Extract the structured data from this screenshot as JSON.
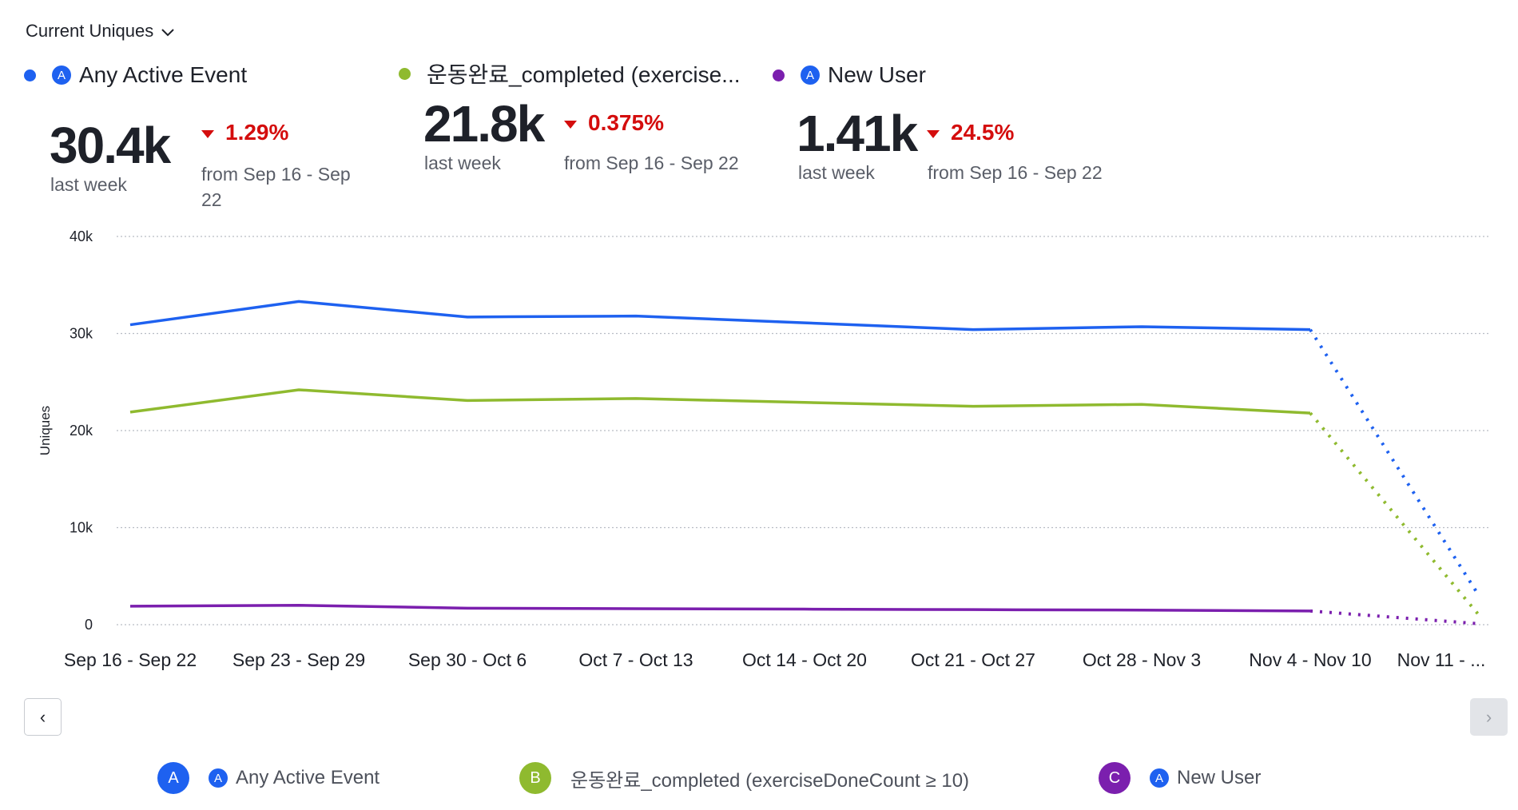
{
  "header": {
    "metric_label": "Current Uniques"
  },
  "summary": [
    {
      "name": "Any Active Event",
      "value": "30.4k",
      "period": "last week",
      "delta": "1.29%",
      "compare": "from Sep 16 - Sep 22",
      "color": "#1e61f0"
    },
    {
      "name": "운동완료_completed (exercise...",
      "value": "21.8k",
      "period": "last week",
      "delta": "0.375%",
      "compare": "from Sep 16 - Sep 22",
      "color": "#8fba2f"
    },
    {
      "name": "New User",
      "value": "1.41k",
      "period": "last week",
      "delta": "24.5%",
      "compare": "from Sep 16 - Sep 22",
      "color": "#7b1fae"
    }
  ],
  "nav": {
    "prev": "‹",
    "next": "›"
  },
  "legend": [
    {
      "letter": "A",
      "label": "Any Active Event",
      "color": "#1e61f0"
    },
    {
      "letter": "B",
      "label": "운동완료_completed (exerciseDoneCount ≥ 10)",
      "color": "#8fba2f"
    },
    {
      "letter": "C",
      "label": "New User",
      "color": "#7b1fae"
    }
  ],
  "chart_data": {
    "type": "line",
    "ylabel": "Uniques",
    "ylim": [
      0,
      40000
    ],
    "yticks": [
      {
        "v": 0,
        "label": "0"
      },
      {
        "v": 10000,
        "label": "10k"
      },
      {
        "v": 20000,
        "label": "20k"
      },
      {
        "v": 30000,
        "label": "30k"
      },
      {
        "v": 40000,
        "label": "40k"
      }
    ],
    "categories": [
      "Sep 16 - Sep 22",
      "Sep 23 - Sep 29",
      "Sep 30 - Oct 6",
      "Oct 7 - Oct 13",
      "Oct 14 - Oct 20",
      "Oct 21 - Oct 27",
      "Oct 28 - Nov 3",
      "Nov 4 - Nov 10",
      "Nov 11 - ..."
    ],
    "incomplete_from_index": 7,
    "series": [
      {
        "name": "Any Active Event",
        "color": "#1e61f0",
        "values": [
          30900,
          33300,
          31700,
          31800,
          31100,
          30400,
          30700,
          30400,
          3000
        ]
      },
      {
        "name": "운동완료_completed (exerciseDoneCount ≥ 10)",
        "color": "#8fba2f",
        "values": [
          21900,
          24200,
          23100,
          23300,
          22900,
          22500,
          22700,
          21800,
          1000
        ]
      },
      {
        "name": "New User",
        "color": "#7b1fae",
        "values": [
          1900,
          2000,
          1700,
          1650,
          1600,
          1550,
          1500,
          1410,
          100
        ]
      }
    ]
  }
}
